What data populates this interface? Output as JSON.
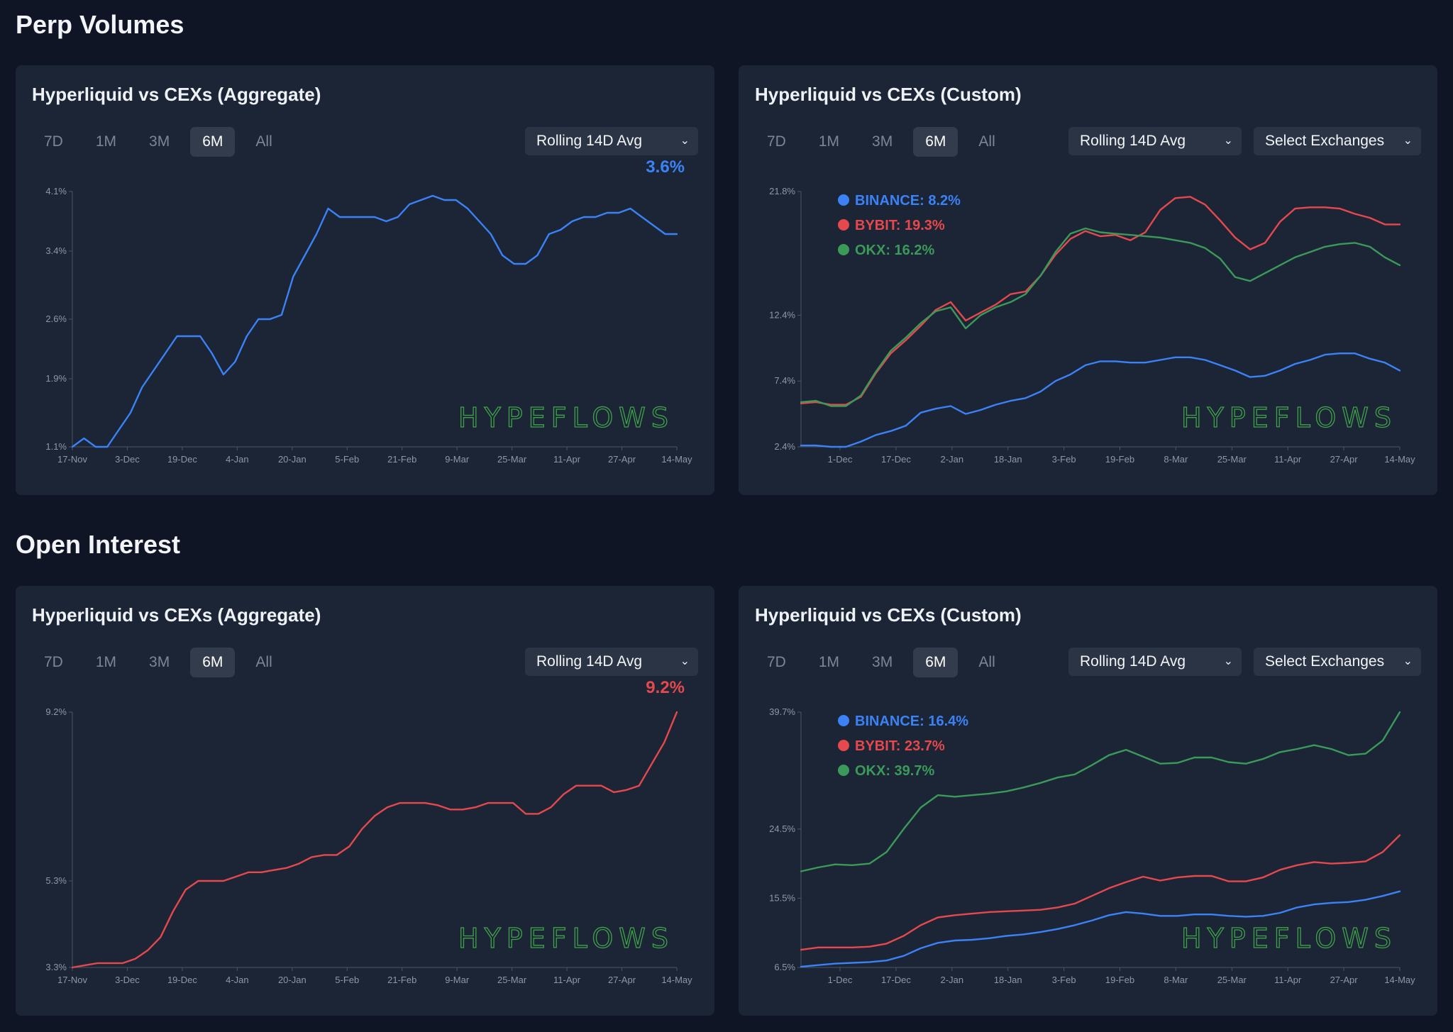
{
  "sections": {
    "perp_volumes": "Perp Volumes",
    "open_interest": "Open Interest"
  },
  "common": {
    "tabs": [
      "7D",
      "1M",
      "3M",
      "6M",
      "All"
    ],
    "active_tab": "6M",
    "avg_dropdown": "Rolling 14D Avg",
    "exchange_dropdown": "Select Exchanges",
    "watermark": "HYPEFLOWS",
    "colors": {
      "blue": "#3b82f6",
      "red": "#e5484d",
      "green": "#3b9a5a"
    }
  },
  "cards": {
    "pv_agg": {
      "title": "Hyperliquid vs CEXs (Aggregate)",
      "latest": "3.6%"
    },
    "pv_custom": {
      "title": "Hyperliquid vs CEXs (Custom)"
    },
    "oi_agg": {
      "title": "Hyperliquid vs CEXs (Aggregate)",
      "latest": "9.2%"
    },
    "oi_custom": {
      "title": "Hyperliquid vs CEXs (Custom)"
    }
  },
  "chart_data": [
    {
      "id": "pv_agg",
      "type": "line",
      "title": "Hyperliquid vs CEXs (Aggregate)",
      "x_labels": [
        "17-Nov",
        "3-Dec",
        "19-Dec",
        "4-Jan",
        "20-Jan",
        "5-Feb",
        "21-Feb",
        "9-Mar",
        "25-Mar",
        "11-Apr",
        "27-Apr",
        "14-May"
      ],
      "y_ticks": [
        "1.1%",
        "1.9%",
        "2.6%",
        "3.4%",
        "4.1%"
      ],
      "ylim": [
        1.1,
        4.1
      ],
      "series": [
        {
          "name": "Hyperliquid",
          "color": "#3b82f6",
          "values": [
            1.1,
            1.2,
            1.1,
            1.1,
            1.3,
            1.5,
            1.8,
            2.0,
            2.2,
            2.4,
            2.4,
            2.4,
            2.2,
            1.95,
            2.1,
            2.4,
            2.6,
            2.6,
            2.65,
            3.1,
            3.35,
            3.6,
            3.9,
            3.8,
            3.8,
            3.8,
            3.8,
            3.75,
            3.8,
            3.95,
            4.0,
            4.05,
            4.0,
            4.0,
            3.9,
            3.75,
            3.6,
            3.35,
            3.25,
            3.25,
            3.35,
            3.6,
            3.65,
            3.75,
            3.8,
            3.8,
            3.85,
            3.85,
            3.9,
            3.8,
            3.7,
            3.6,
            3.6
          ]
        }
      ]
    },
    {
      "id": "pv_custom",
      "type": "line",
      "title": "Hyperliquid vs CEXs (Custom)",
      "x_labels": [
        "1-Dec",
        "17-Dec",
        "2-Jan",
        "18-Jan",
        "3-Feb",
        "19-Feb",
        "8-Mar",
        "25-Mar",
        "11-Apr",
        "27-Apr",
        "14-May"
      ],
      "y_ticks": [
        "2.4%",
        "7.4%",
        "12.4%",
        "21.8%"
      ],
      "ylim": [
        2.4,
        21.8
      ],
      "legend": [
        "BINANCE: 8.2%",
        "BYBIT: 19.3%",
        "OKX: 16.2%"
      ],
      "series": [
        {
          "name": "BINANCE",
          "color": "#3b82f6",
          "values": [
            2.5,
            2.5,
            2.4,
            2.4,
            2.8,
            3.3,
            3.6,
            4.0,
            5.0,
            5.3,
            5.5,
            4.9,
            5.2,
            5.6,
            5.9,
            6.1,
            6.6,
            7.4,
            7.9,
            8.6,
            8.9,
            8.9,
            8.8,
            8.8,
            9.0,
            9.2,
            9.2,
            9.0,
            8.6,
            8.2,
            7.7,
            7.8,
            8.2,
            8.7,
            9.0,
            9.4,
            9.5,
            9.5,
            9.1,
            8.8,
            8.2
          ]
        },
        {
          "name": "BYBIT",
          "color": "#e5484d",
          "values": [
            5.7,
            5.8,
            5.6,
            5.6,
            6.2,
            8.0,
            9.5,
            10.5,
            11.6,
            12.8,
            13.4,
            12.0,
            12.6,
            13.2,
            14.0,
            14.2,
            15.4,
            17.0,
            18.2,
            18.8,
            18.4,
            18.5,
            18.1,
            18.7,
            20.4,
            21.3,
            21.4,
            20.8,
            19.6,
            18.3,
            17.4,
            17.9,
            19.5,
            20.5,
            20.6,
            20.6,
            20.5,
            20.1,
            19.8,
            19.3,
            19.3
          ]
        },
        {
          "name": "OKX",
          "color": "#3b9a5a",
          "values": [
            5.8,
            5.9,
            5.5,
            5.5,
            6.3,
            8.1,
            9.7,
            10.7,
            11.8,
            12.7,
            13.0,
            11.4,
            12.4,
            13.0,
            13.4,
            14.0,
            15.4,
            17.2,
            18.6,
            19.0,
            18.7,
            18.6,
            18.5,
            18.4,
            18.3,
            18.1,
            17.9,
            17.5,
            16.7,
            15.3,
            15.0,
            15.6,
            16.2,
            16.8,
            17.2,
            17.6,
            17.8,
            17.9,
            17.6,
            16.8,
            16.2
          ]
        }
      ]
    },
    {
      "id": "oi_agg",
      "type": "line",
      "title": "Hyperliquid vs CEXs (Aggregate)",
      "x_labels": [
        "17-Nov",
        "3-Dec",
        "19-Dec",
        "4-Jan",
        "20-Jan",
        "5-Feb",
        "21-Feb",
        "9-Mar",
        "25-Mar",
        "11-Apr",
        "27-Apr",
        "14-May"
      ],
      "y_ticks": [
        "3.3%",
        "5.3%",
        "9.2%"
      ],
      "ylim": [
        3.3,
        9.2
      ],
      "series": [
        {
          "name": "Hyperliquid",
          "color": "#e5484d",
          "values": [
            3.3,
            3.35,
            3.4,
            3.4,
            3.4,
            3.5,
            3.7,
            4.0,
            4.6,
            5.1,
            5.3,
            5.3,
            5.3,
            5.4,
            5.5,
            5.5,
            5.55,
            5.6,
            5.7,
            5.85,
            5.9,
            5.9,
            6.1,
            6.5,
            6.8,
            7.0,
            7.1,
            7.1,
            7.1,
            7.05,
            6.95,
            6.95,
            7.0,
            7.1,
            7.1,
            7.1,
            6.85,
            6.85,
            7.0,
            7.3,
            7.5,
            7.5,
            7.5,
            7.35,
            7.4,
            7.5,
            8.0,
            8.5,
            9.2
          ]
        }
      ]
    },
    {
      "id": "oi_custom",
      "type": "line",
      "title": "Hyperliquid vs CEXs (Custom)",
      "x_labels": [
        "1-Dec",
        "17-Dec",
        "2-Jan",
        "18-Jan",
        "3-Feb",
        "19-Feb",
        "8-Mar",
        "25-Mar",
        "11-Apr",
        "27-Apr",
        "14-May"
      ],
      "y_ticks": [
        "6.5%",
        "15.5%",
        "24.5%",
        "39.7%"
      ],
      "ylim": [
        6.5,
        39.7
      ],
      "legend": [
        "BINANCE: 16.4%",
        "BYBIT: 23.7%",
        "OKX: 39.7%"
      ],
      "series": [
        {
          "name": "BINANCE",
          "color": "#3b82f6",
          "values": [
            6.6,
            6.8,
            7.0,
            7.1,
            7.2,
            7.4,
            8.0,
            9.0,
            9.7,
            10.0,
            10.1,
            10.3,
            10.6,
            10.8,
            11.1,
            11.5,
            12.0,
            12.6,
            13.3,
            13.7,
            13.5,
            13.2,
            13.2,
            13.4,
            13.4,
            13.2,
            13.1,
            13.2,
            13.6,
            14.3,
            14.7,
            14.9,
            15.0,
            15.3,
            15.8,
            16.4
          ]
        },
        {
          "name": "BYBIT",
          "color": "#e5484d",
          "values": [
            8.8,
            9.1,
            9.1,
            9.1,
            9.2,
            9.6,
            10.6,
            12.0,
            13.0,
            13.3,
            13.5,
            13.7,
            13.8,
            13.9,
            14.0,
            14.3,
            14.8,
            15.8,
            16.8,
            17.6,
            18.3,
            17.8,
            18.2,
            18.4,
            18.4,
            17.7,
            17.7,
            18.2,
            19.2,
            19.8,
            20.2,
            20.0,
            20.1,
            20.3,
            21.5,
            23.7
          ]
        },
        {
          "name": "OKX",
          "color": "#3b9a5a",
          "values": [
            19.0,
            19.5,
            19.9,
            19.8,
            20.0,
            21.5,
            24.5,
            27.3,
            28.9,
            28.7,
            28.9,
            29.1,
            29.4,
            29.9,
            30.5,
            31.2,
            31.6,
            32.8,
            34.1,
            34.8,
            33.9,
            33.0,
            33.1,
            33.8,
            33.8,
            33.2,
            33.0,
            33.6,
            34.5,
            34.9,
            35.4,
            34.9,
            34.1,
            34.3,
            36.0,
            39.7
          ]
        }
      ]
    }
  ]
}
